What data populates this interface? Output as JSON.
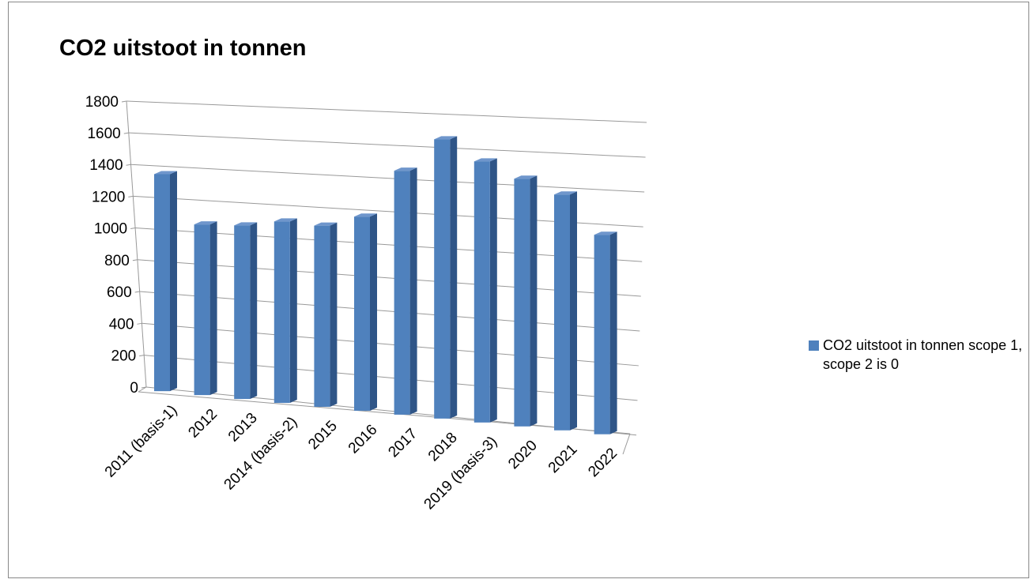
{
  "chart_data": {
    "type": "bar3d",
    "title": "CO2 uitstoot in tonnen",
    "categories": [
      "2011 (basis-1)",
      "2012",
      "2013",
      "2014 (basis-2)",
      "2015",
      "2016",
      "2017",
      "2018",
      "2019 (basis-3)",
      "2020",
      "2021",
      "2022"
    ],
    "series": [
      {
        "name": "CO2 uitstoot in tonnen scope 1, scope 2 is 0",
        "color": "#4f81bd",
        "values": [
          1350,
          1050,
          1060,
          1100,
          1090,
          1160,
          1450,
          1650,
          1530,
          1440,
          1360,
          1140
        ]
      }
    ],
    "ylim": [
      0,
      1800
    ],
    "yticks": [
      0,
      200,
      400,
      600,
      800,
      1000,
      1200,
      1400,
      1600,
      1800
    ],
    "grid": true,
    "legend": "right"
  }
}
